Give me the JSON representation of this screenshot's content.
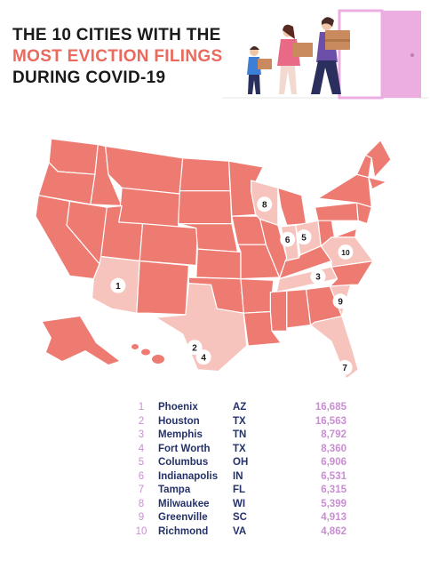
{
  "header": {
    "title_line1": "THE 10 CITIES WITH THE",
    "title_line2": "MOST EVICTION FILINGS",
    "title_line3": "DURING COVID-19"
  },
  "colors": {
    "state_default": "#ee7b72",
    "state_highlight": "#f7c3bd",
    "state_border": "#ffffff",
    "accent_text": "#ea6a5e",
    "city_text": "#25326a",
    "number_text": "#c88fd0",
    "door_pink": "#ecaee0"
  },
  "illustration": {
    "icon": "family-moving-boxes-icon"
  },
  "map": {
    "highlighted_states": [
      "AZ",
      "TX",
      "TN",
      "OH",
      "IN",
      "FL",
      "WI",
      "SC",
      "VA"
    ],
    "markers": [
      {
        "rank": "1",
        "state": "AZ"
      },
      {
        "rank": "2",
        "state": "TX"
      },
      {
        "rank": "3",
        "state": "TN"
      },
      {
        "rank": "4",
        "state": "TX"
      },
      {
        "rank": "5",
        "state": "OH"
      },
      {
        "rank": "6",
        "state": "IN"
      },
      {
        "rank": "7",
        "state": "FL"
      },
      {
        "rank": "8",
        "state": "WI"
      },
      {
        "rank": "9",
        "state": "SC"
      },
      {
        "rank": "10",
        "state": "VA"
      }
    ]
  },
  "chart_data": {
    "type": "table",
    "columns": [
      "rank",
      "city",
      "state",
      "eviction_filings"
    ],
    "rows": [
      {
        "rank": "1",
        "city": "Phoenix",
        "state": "AZ",
        "filings": "16,685",
        "value": 16685
      },
      {
        "rank": "2",
        "city": "Houston",
        "state": "TX",
        "filings": "16,563",
        "value": 16563
      },
      {
        "rank": "3",
        "city": "Memphis",
        "state": "TN",
        "filings": "8,792",
        "value": 8792
      },
      {
        "rank": "4",
        "city": "Fort Worth",
        "state": "TX",
        "filings": "8,360",
        "value": 8360
      },
      {
        "rank": "5",
        "city": "Columbus",
        "state": "OH",
        "filings": "6,906",
        "value": 6906
      },
      {
        "rank": "6",
        "city": "Indianapolis",
        "state": "IN",
        "filings": "6,531",
        "value": 6531
      },
      {
        "rank": "7",
        "city": "Tampa",
        "state": "FL",
        "filings": "6,315",
        "value": 6315
      },
      {
        "rank": "8",
        "city": "Milwaukee",
        "state": "WI",
        "filings": "5,399",
        "value": 5399
      },
      {
        "rank": "9",
        "city": "Greenville",
        "state": "SC",
        "filings": "4,913",
        "value": 4913
      },
      {
        "rank": "10",
        "city": "Richmond",
        "state": "VA",
        "filings": "4,862",
        "value": 4862
      }
    ]
  }
}
